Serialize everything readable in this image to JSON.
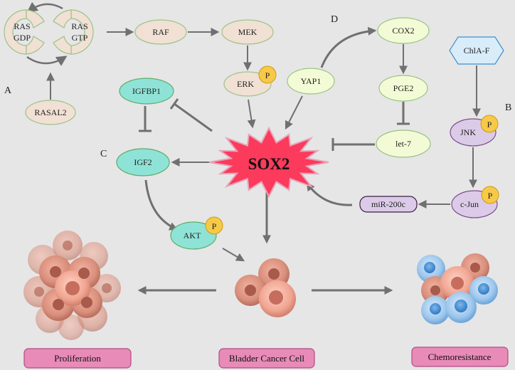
{
  "panels": {
    "a": "A",
    "b": "B",
    "c": "C",
    "d": "D"
  },
  "nodes": {
    "ras_gdp": [
      "RAS",
      "GDP"
    ],
    "ras_gtp": [
      "RAS",
      "GTP"
    ],
    "rasal2": "RASAL2",
    "raf": "RAF",
    "mek": "MEK",
    "erk": "ERK",
    "yap1": "YAP1",
    "cox2": "COX2",
    "pge2": "PGE2",
    "let7": "let-7",
    "chla_f": "ChlA-F",
    "jnk": "JNK",
    "cjun": "c-Jun",
    "mir200c": "miR-200c",
    "igfbp1": "IGFBP1",
    "igf2": "IGF2",
    "akt": "AKT",
    "sox2": "SOX2",
    "phospho": "P"
  },
  "outcomes": {
    "proliferation": "Proliferation",
    "bladder_cancer_cell": "Bladder Cancer Cell",
    "chemoresistance": "Chemoresistance"
  },
  "colors": {
    "background": "#e6e6e6",
    "tan_fill": "#f1e0d4",
    "tan_stroke": "#9bc287",
    "yellow_green_fill": "#f3fbd6",
    "yellow_green_stroke": "#9bc287",
    "teal_fill": "#8fe3d6",
    "teal_stroke": "#5fae6a",
    "purple_fill": "#dccbe8",
    "purple_stroke": "#7b4f8f",
    "hex_fill": "#d8ecfa",
    "hex_stroke": "#3f8fd0",
    "phospho_fill": "#f7c948",
    "phospho_stroke": "#d09a10",
    "sox2_fill": "#fb3a5c",
    "sox2_stroke": "#e8a3b8",
    "outcome_fill": "#e88bb8",
    "outcome_stroke": "#b34b83",
    "arrow": "#707070"
  }
}
